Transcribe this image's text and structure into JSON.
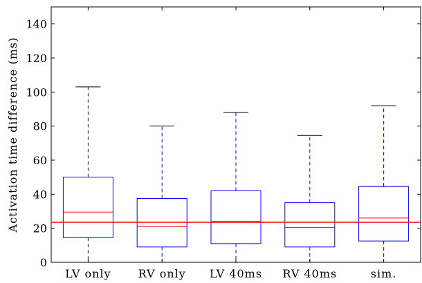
{
  "chart_data": {
    "type": "box",
    "title": "",
    "xlabel": "",
    "ylabel": "Activation time difference (ms)",
    "ylim": [
      0,
      150
    ],
    "yticks": [
      0,
      20,
      40,
      60,
      80,
      100,
      120,
      140
    ],
    "categories": [
      "LV only",
      "RV only",
      "LV 40ms",
      "RV 40ms",
      "sim."
    ],
    "boxes": [
      {
        "whisker_low": 0,
        "q1": 14.5,
        "median": 29.5,
        "q3": 50,
        "whisker_high": 103
      },
      {
        "whisker_low": 0,
        "q1": 9,
        "median": 21,
        "q3": 37.5,
        "whisker_high": 80
      },
      {
        "whisker_low": 0,
        "q1": 11,
        "median": 24,
        "q3": 42,
        "whisker_high": 88
      },
      {
        "whisker_low": 0,
        "q1": 9,
        "median": 20.5,
        "q3": 35,
        "whisker_high": 74.5
      },
      {
        "whisker_low": 0,
        "q1": 12.5,
        "median": 26,
        "q3": 44.5,
        "whisker_high": 92
      }
    ],
    "reference_line": 23.5,
    "grid": false,
    "colors": {
      "box": "#0000ff",
      "median": "#ff0000",
      "reference": "#ff0000",
      "whisker_cap": "#000000",
      "axis": "#000000"
    }
  }
}
